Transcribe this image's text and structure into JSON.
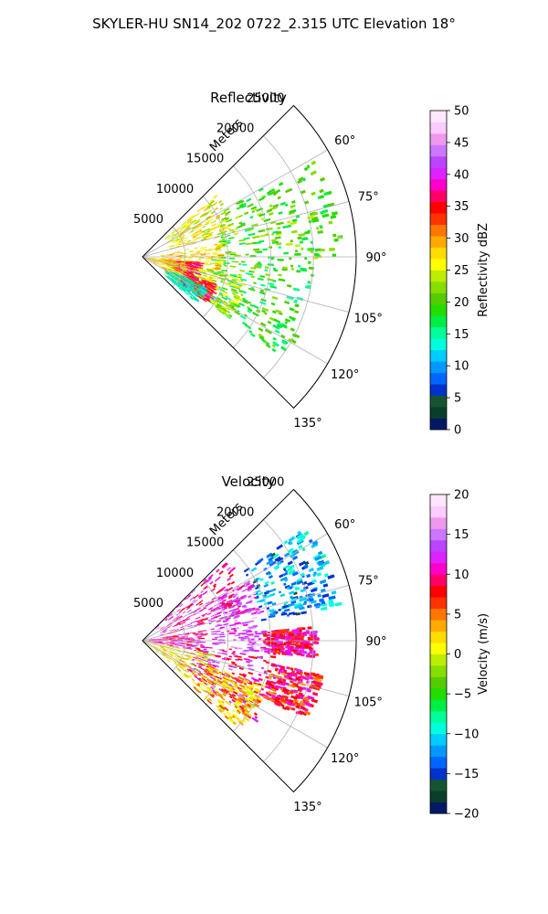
{
  "figure": {
    "title": "SKYLER-HU  SN14_202  0722_2.315 UTC Elevation 18°"
  },
  "chart_data": [
    {
      "type": "heatmap",
      "projection": "polar-sector",
      "title": "Reflectivity",
      "range_axis_label": "Meters",
      "range_ticks": [
        5000,
        10000,
        15000,
        20000,
        25000
      ],
      "range_max": 25000,
      "azimuth_range_deg": [
        45,
        135
      ],
      "azimuth_ticks_deg": [
        60,
        75,
        90,
        105,
        120,
        135
      ],
      "azimuth_tick_labels": [
        "60°",
        "75°",
        "90°",
        "105°",
        "120°",
        "135°"
      ],
      "grid": true,
      "colorbar": {
        "label": "Reflectivity dBZ",
        "min": 0,
        "max": 50,
        "ticks": [
          0,
          5,
          10,
          15,
          20,
          25,
          30,
          35,
          40,
          45,
          50
        ],
        "colors": [
          "#001a66",
          "#0a3d2a",
          "#14552f",
          "#0033cc",
          "#0066ff",
          "#0099ff",
          "#00ccff",
          "#00ffdd",
          "#00ff99",
          "#00ee44",
          "#22dd00",
          "#55cc00",
          "#88dd00",
          "#bbee00",
          "#ffff00",
          "#ffdd00",
          "#ffaa00",
          "#ff7700",
          "#ff3300",
          "#ff0000",
          "#ff0066",
          "#ff00cc",
          "#dd22ff",
          "#bb44ff",
          "#cc77ff",
          "#ee99ee",
          "#ffccff",
          "#ffe8ff"
        ]
      },
      "echo_regions": [
        {
          "az": [
            60,
            90
          ],
          "range": [
            9000,
            23000
          ],
          "value": 20
        },
        {
          "az": [
            90,
            125
          ],
          "range": [
            8000,
            20000
          ],
          "value": 19
        },
        {
          "az": [
            100,
            125
          ],
          "range": [
            3000,
            12000
          ],
          "value": 24
        },
        {
          "az": [
            50,
            75
          ],
          "range": [
            3000,
            11000
          ],
          "value": 26
        },
        {
          "az": [
            80,
            110
          ],
          "range": [
            2000,
            9000
          ],
          "value": 27
        },
        {
          "az": [
            95,
            112
          ],
          "range": [
            3500,
            6500
          ],
          "value": 36
        },
        {
          "az": [
            110,
            125
          ],
          "range": [
            5000,
            9000
          ],
          "value": 35
        },
        {
          "az": [
            95,
            120
          ],
          "range": [
            500,
            5000
          ],
          "value": 28
        },
        {
          "az": [
            115,
            130
          ],
          "range": [
            3000,
            8000
          ],
          "value": 14
        }
      ]
    },
    {
      "type": "heatmap",
      "projection": "polar-sector",
      "title": "Velocity",
      "range_axis_label": "Meters",
      "range_ticks": [
        5000,
        10000,
        15000,
        20000,
        25000
      ],
      "range_max": 25000,
      "azimuth_range_deg": [
        45,
        135
      ],
      "azimuth_ticks_deg": [
        60,
        75,
        90,
        105,
        120,
        135
      ],
      "azimuth_tick_labels": [
        "60°",
        "75°",
        "90°",
        "105°",
        "120°",
        "135°"
      ],
      "grid": true,
      "colorbar": {
        "label": "Velocity (m/s)",
        "min": -20,
        "max": 20,
        "ticks": [
          -20,
          -15,
          -10,
          -5,
          0,
          5,
          10,
          15,
          20
        ],
        "colors": [
          "#001a66",
          "#0a3d2a",
          "#14552f",
          "#0033cc",
          "#0066ff",
          "#0099ff",
          "#00ccff",
          "#00ffdd",
          "#00ff99",
          "#00ee44",
          "#22dd00",
          "#55cc00",
          "#88dd00",
          "#bbee00",
          "#ffff00",
          "#ffdd00",
          "#ffaa00",
          "#ff7700",
          "#ff3300",
          "#ff0000",
          "#ff0066",
          "#ff00cc",
          "#dd22ff",
          "#bb44ff",
          "#cc77ff",
          "#ee99ee",
          "#ffccff",
          "#ffe8ff"
        ]
      },
      "echo_regions": [
        {
          "az": [
            45,
            75
          ],
          "range": [
            2000,
            13000
          ],
          "value": 11
        },
        {
          "az": [
            55,
            80
          ],
          "range": [
            14000,
            23000
          ],
          "value": -12
        },
        {
          "az": [
            60,
            95
          ],
          "range": [
            8000,
            14000
          ],
          "value": 14
        },
        {
          "az": [
            80,
            100
          ],
          "range": [
            0,
            7000
          ],
          "value": 11
        },
        {
          "az": [
            95,
            125
          ],
          "range": [
            6000,
            16000
          ],
          "value": 11
        },
        {
          "az": [
            100,
            130
          ],
          "range": [
            0,
            8000
          ],
          "value": 1
        },
        {
          "az": [
            110,
            132
          ],
          "range": [
            8000,
            15000
          ],
          "value": 3
        },
        {
          "az": [
            85,
            95
          ],
          "range": [
            14000,
            20000
          ],
          "value": 10
        },
        {
          "az": [
            100,
            115
          ],
          "range": [
            15000,
            21000
          ],
          "value": 8
        }
      ]
    }
  ]
}
